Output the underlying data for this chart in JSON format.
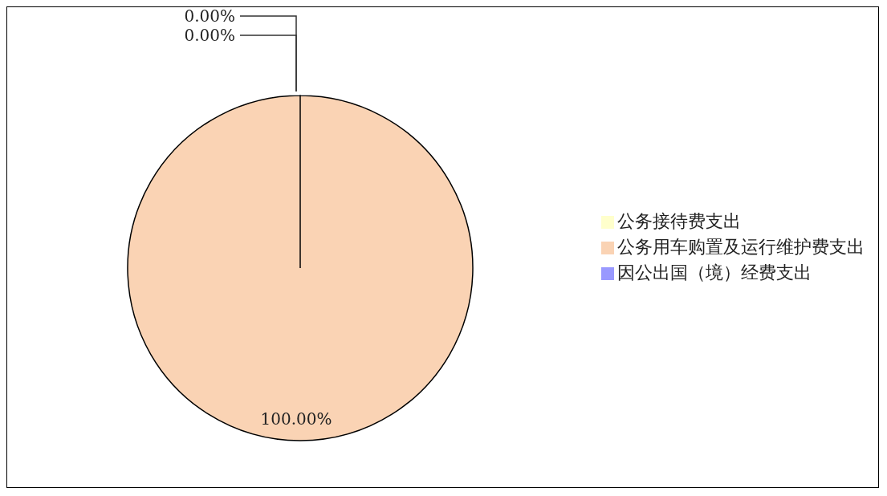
{
  "chart_data": {
    "type": "pie",
    "categories": [
      "因公出国（境）经费支出",
      "公务用车购置及运行维护费支出",
      "公务接待费支出"
    ],
    "values": [
      0,
      100,
      0
    ],
    "colors": [
      "#9999ff",
      "#fad3b4",
      "#ffffcc"
    ],
    "value_labels": [
      "0.00%",
      "100.00%",
      "0.00%"
    ],
    "legend": "right"
  }
}
